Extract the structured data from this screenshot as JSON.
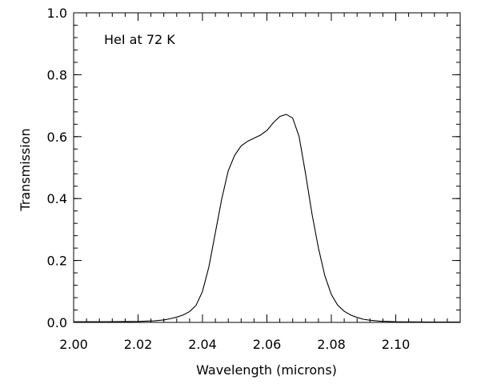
{
  "chart_data": {
    "type": "line",
    "title": "",
    "annotation": "HeI at 72 K",
    "xlabel": "Wavelength (microns)",
    "ylabel": "Transmission",
    "xlim": [
      2.0,
      2.12
    ],
    "ylim": [
      0.0,
      1.0
    ],
    "x_ticks": [
      2.0,
      2.02,
      2.04,
      2.06,
      2.08,
      2.1
    ],
    "x_tick_labels": [
      "2.00",
      "2.02",
      "2.04",
      "2.06",
      "2.08",
      "2.10"
    ],
    "y_ticks": [
      0.0,
      0.2,
      0.4,
      0.6,
      0.8,
      1.0
    ],
    "y_tick_labels": [
      "0.0",
      "0.2",
      "0.4",
      "0.6",
      "0.8",
      "1.0"
    ],
    "x_minor_step": 0.004,
    "y_minor_step": 0.04,
    "grid": false,
    "series": [
      {
        "x": [
          2.0,
          2.01,
          2.02,
          2.025,
          2.028,
          2.03,
          2.032,
          2.034,
          2.036,
          2.038,
          2.04,
          2.042,
          2.044,
          2.046,
          2.048,
          2.05,
          2.052,
          2.054,
          2.056,
          2.058,
          2.06,
          2.062,
          2.064,
          2.066,
          2.068,
          2.07,
          2.072,
          2.074,
          2.076,
          2.078,
          2.08,
          2.082,
          2.084,
          2.086,
          2.088,
          2.09,
          2.092,
          2.095,
          2.1,
          2.11,
          2.12
        ],
        "y": [
          0.002,
          0.002,
          0.003,
          0.005,
          0.008,
          0.012,
          0.017,
          0.024,
          0.035,
          0.055,
          0.1,
          0.18,
          0.29,
          0.4,
          0.49,
          0.54,
          0.57,
          0.585,
          0.595,
          0.605,
          0.62,
          0.645,
          0.665,
          0.672,
          0.66,
          0.6,
          0.48,
          0.35,
          0.24,
          0.15,
          0.09,
          0.055,
          0.036,
          0.024,
          0.016,
          0.01,
          0.007,
          0.004,
          0.002,
          0.001,
          0.001
        ]
      }
    ]
  }
}
